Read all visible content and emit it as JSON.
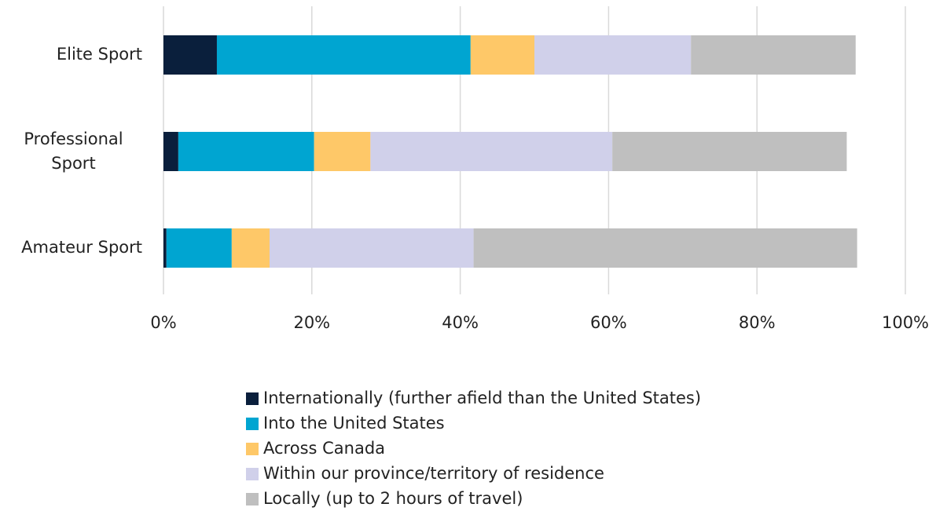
{
  "chart_data": {
    "type": "stacked-barh",
    "categories": [
      "Elite Sport",
      "Professional Sport",
      "Amateur Sport"
    ],
    "series": [
      {
        "name": "Internationally (further afield than the United States)",
        "color": "#0a1f3c",
        "values": [
          7.2,
          2.0,
          0.4
        ]
      },
      {
        "name": "Into the United States",
        "color": "#00a5d1",
        "values": [
          34.2,
          18.3,
          8.8
        ]
      },
      {
        "name": "Across Canada",
        "color": "#fec868",
        "values": [
          8.6,
          7.6,
          5.1
        ]
      },
      {
        "name": "Within our province/territory of residence",
        "color": "#d0d0ea",
        "values": [
          21.1,
          32.6,
          27.5
        ]
      },
      {
        "name": "Locally (up to 2 hours of travel)",
        "color": "#bfbfbf",
        "values": [
          22.2,
          31.6,
          51.7
        ]
      }
    ],
    "xlim": [
      0,
      100
    ],
    "xticks": [
      {
        "value": 0,
        "label": "0%"
      },
      {
        "value": 20,
        "label": "20%"
      },
      {
        "value": 40,
        "label": "40%"
      },
      {
        "value": 60,
        "label": "60%"
      },
      {
        "value": 80,
        "label": "80%"
      },
      {
        "value": 100,
        "label": "100%"
      }
    ],
    "grid": true
  }
}
